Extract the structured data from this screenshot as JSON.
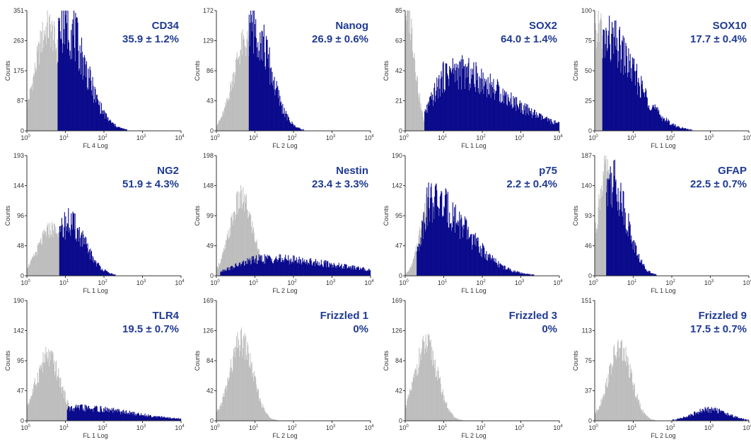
{
  "styles": {
    "ctrl_color": "#bdbdbd",
    "pos_color": "#0a0a8c",
    "label_color": "#1f3a93"
  },
  "chart_data": [
    {
      "type": "area",
      "marker": "CD34",
      "value": "35.9 ± 1.2%",
      "xlabel": "FL 4 Log",
      "ylabel": "Counts",
      "yticks": [
        "0",
        "87",
        "175",
        "263",
        "351"
      ],
      "ymax": 351,
      "xlim": [
        1,
        10000
      ],
      "control": {
        "peak_log": 0.55,
        "height": 300,
        "spread": 0.33
      },
      "positive": {
        "peak_log": 0.95,
        "height": 315,
        "spread": 0.3,
        "tail": 0.25,
        "from_log": 0.8
      }
    },
    {
      "type": "area",
      "marker": "Nanog",
      "value": "26.9 ± 0.6%",
      "xlabel": "FL 2 Log",
      "ylabel": "Counts",
      "yticks": [
        "0",
        "43",
        "86",
        "129",
        "172"
      ],
      "ymax": 172,
      "xlim": [
        1,
        10000
      ],
      "control": {
        "peak_log": 0.75,
        "height": 125,
        "spread": 0.32
      },
      "positive": {
        "peak_log": 0.95,
        "height": 150,
        "spread": 0.24,
        "tail": 0.2,
        "from_log": 0.85
      }
    },
    {
      "type": "area",
      "marker": "SOX2",
      "value": "64.0 ± 1.4%",
      "xlabel": "FL 1 Log",
      "ylabel": "Counts",
      "yticks": [
        "0",
        "21",
        "42",
        "63",
        "85"
      ],
      "ymax": 85,
      "xlim": [
        1,
        10000
      ],
      "control": {
        "peak_log": 0.05,
        "height": 85,
        "spread": 0.2
      },
      "positive": {
        "peak_log": 1.2,
        "height": 42,
        "spread": 0.45,
        "tail": 0.9,
        "from_log": 0.5
      }
    },
    {
      "type": "area",
      "marker": "SOX10",
      "value": "17.7 ± 0.4%",
      "xlabel": "FL 1 Log",
      "ylabel": "Counts",
      "yticks": [
        "0",
        "25",
        "50",
        "75",
        "100"
      ],
      "ymax": 100,
      "xlim": [
        1,
        10000
      ],
      "control": {
        "peak_log": 0.12,
        "height": 92,
        "spread": 0.18
      },
      "positive": {
        "peak_log": 0.3,
        "height": 75,
        "spread": 0.25,
        "tail": 0.5,
        "from_log": 0.2
      }
    },
    {
      "type": "area",
      "marker": "NG2",
      "value": "51.9 ± 4.3%",
      "xlabel": "FL 1 Log",
      "ylabel": "Counts",
      "yticks": [
        "0",
        "48",
        "96",
        "144",
        "193"
      ],
      "ymax": 193,
      "xlim": [
        1,
        10000
      ],
      "control": {
        "peak_log": 0.65,
        "height": 75,
        "spread": 0.35
      },
      "positive": {
        "peak_log": 1.05,
        "height": 85,
        "spread": 0.25,
        "tail": 0.2,
        "from_log": 0.85
      }
    },
    {
      "type": "area",
      "marker": "Nestin",
      "value": "23.4 ± 3.3%",
      "xlabel": "FL 2 Log",
      "ylabel": "Counts",
      "yticks": [
        "0",
        "49",
        "99",
        "148",
        "198"
      ],
      "ymax": 198,
      "xlim": [
        1,
        10000
      ],
      "control": {
        "peak_log": 0.65,
        "height": 125,
        "spread": 0.3
      },
      "positive": {
        "peak_log": 1.3,
        "height": 28,
        "spread": 0.75,
        "tail": 1.1,
        "from_log": 0.1
      }
    },
    {
      "type": "area",
      "marker": "p75",
      "value": "2.2 ± 0.4%",
      "xlabel": "FL 1 Log",
      "ylabel": "Counts",
      "yticks": [
        "0",
        "47",
        "95",
        "142",
        "190"
      ],
      "ymax": 190,
      "xlim": [
        1,
        10000
      ],
      "control": {
        "peak_log": 0.6,
        "height": 115,
        "spread": 0.22
      },
      "positive": {
        "peak_log": 0.65,
        "height": 118,
        "spread": 0.22,
        "tail": 0.7,
        "from_log": 0.3
      }
    },
    {
      "type": "area",
      "marker": "GFAP",
      "value": "22.5 ± 0.7%",
      "xlabel": "FL 1 Log",
      "ylabel": "Counts",
      "yticks": [
        "0",
        "46",
        "93",
        "140",
        "187"
      ],
      "ymax": 187,
      "xlim": [
        1,
        10000
      ],
      "control": {
        "peak_log": 0.28,
        "height": 160,
        "spread": 0.2
      },
      "positive": {
        "peak_log": 0.42,
        "height": 150,
        "spread": 0.2,
        "tail": 0.2,
        "from_log": 0.3
      }
    },
    {
      "type": "area",
      "marker": "TLR4",
      "value": "19.5 ± 0.7%",
      "xlabel": "FL 1 Log",
      "ylabel": "Counts",
      "yticks": [
        "0",
        "47",
        "95",
        "142",
        "190"
      ],
      "ymax": 190,
      "xlim": [
        1,
        10000
      ],
      "control": {
        "peak_log": 0.55,
        "height": 100,
        "spread": 0.32
      },
      "positive": {
        "peak_log": 1.3,
        "height": 20,
        "spread": 0.6,
        "tail": 0.8,
        "from_log": 1.05
      }
    },
    {
      "type": "area",
      "marker": "Frizzled 1",
      "value": "0%",
      "xlabel": "FL 2 Log",
      "ylabel": "Counts",
      "yticks": [
        "0",
        "42",
        "84",
        "126",
        "169"
      ],
      "ymax": 169,
      "xlim": [
        1,
        10000
      ],
      "control": {
        "peak_log": 0.65,
        "height": 110,
        "spread": 0.3
      },
      "positive": null
    },
    {
      "type": "area",
      "marker": "Frizzled 3",
      "value": "0%",
      "xlabel": "FL 2 Log",
      "ylabel": "Counts",
      "yticks": [
        "0",
        "42",
        "84",
        "126",
        "169"
      ],
      "ymax": 169,
      "xlim": [
        1,
        10000
      ],
      "control": {
        "peak_log": 0.55,
        "height": 105,
        "spread": 0.3
      },
      "positive": null
    },
    {
      "type": "area",
      "marker": "Frizzled 9",
      "value": "17.5 ± 0.7%",
      "xlabel": "FL 2 Log",
      "ylabel": "Counts",
      "yticks": [
        "0",
        "37",
        "75",
        "113",
        "151"
      ],
      "ymax": 151,
      "xlim": [
        1,
        10000
      ],
      "control": {
        "peak_log": 0.65,
        "height": 90,
        "spread": 0.3
      },
      "positive": {
        "peak_log": 3.0,
        "height": 14,
        "spread": 0.45,
        "tail": 0,
        "from_log": 1.9
      }
    }
  ]
}
